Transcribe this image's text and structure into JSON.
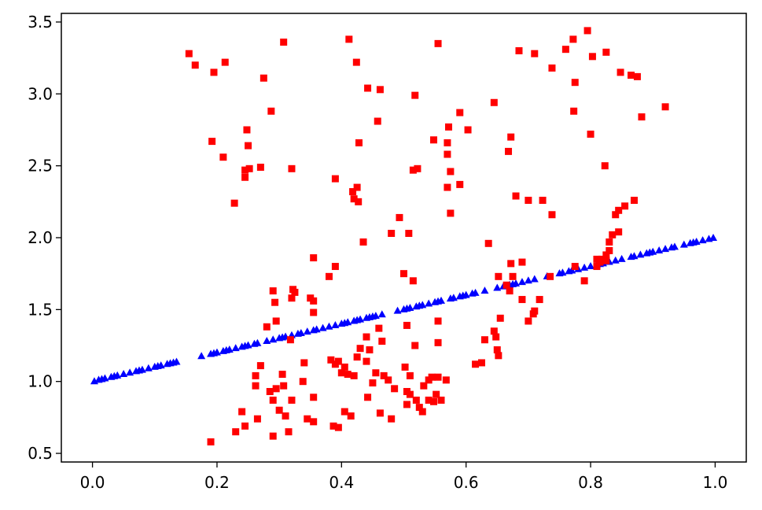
{
  "chart_data": {
    "type": "scatter",
    "title": "",
    "xlabel": "",
    "ylabel": "",
    "xlim": [
      -0.05,
      1.05
    ],
    "ylim": [
      0.44,
      3.56
    ],
    "grid": false,
    "x_ticks": [
      {
        "value": 0.0,
        "label": "0.0"
      },
      {
        "value": 0.2,
        "label": "0.2"
      },
      {
        "value": 0.4,
        "label": "0.4"
      },
      {
        "value": 0.6,
        "label": "0.6"
      },
      {
        "value": 0.8,
        "label": "0.8"
      },
      {
        "value": 1.0,
        "label": "1.0"
      }
    ],
    "y_ticks": [
      {
        "value": 0.5,
        "label": "0.5"
      },
      {
        "value": 1.0,
        "label": "1.0"
      },
      {
        "value": 1.5,
        "label": "1.5"
      },
      {
        "value": 2.0,
        "label": "2.0"
      },
      {
        "value": 2.5,
        "label": "2.5"
      },
      {
        "value": 3.0,
        "label": "3.0"
      },
      {
        "value": 3.5,
        "label": "3.5"
      }
    ],
    "series": [
      {
        "marker": "triangle",
        "color": "#0000ff",
        "points": [
          [
            0.003,
            1.0
          ],
          [
            0.01,
            1.01
          ],
          [
            0.015,
            1.015
          ],
          [
            0.02,
            1.02
          ],
          [
            0.03,
            1.03
          ],
          [
            0.035,
            1.035
          ],
          [
            0.04,
            1.04
          ],
          [
            0.05,
            1.05
          ],
          [
            0.06,
            1.06
          ],
          [
            0.07,
            1.07
          ],
          [
            0.075,
            1.075
          ],
          [
            0.08,
            1.08
          ],
          [
            0.09,
            1.09
          ],
          [
            0.1,
            1.1
          ],
          [
            0.105,
            1.105
          ],
          [
            0.11,
            1.11
          ],
          [
            0.12,
            1.12
          ],
          [
            0.125,
            1.125
          ],
          [
            0.13,
            1.13
          ],
          [
            0.135,
            1.135
          ],
          [
            0.175,
            1.175
          ],
          [
            0.19,
            1.19
          ],
          [
            0.195,
            1.195
          ],
          [
            0.2,
            1.2
          ],
          [
            0.21,
            1.21
          ],
          [
            0.215,
            1.215
          ],
          [
            0.22,
            1.22
          ],
          [
            0.23,
            1.23
          ],
          [
            0.24,
            1.24
          ],
          [
            0.245,
            1.245
          ],
          [
            0.25,
            1.25
          ],
          [
            0.26,
            1.26
          ],
          [
            0.265,
            1.265
          ],
          [
            0.28,
            1.28
          ],
          [
            0.29,
            1.29
          ],
          [
            0.3,
            1.3
          ],
          [
            0.305,
            1.305
          ],
          [
            0.31,
            1.31
          ],
          [
            0.32,
            1.32
          ],
          [
            0.33,
            1.33
          ],
          [
            0.335,
            1.335
          ],
          [
            0.345,
            1.345
          ],
          [
            0.355,
            1.355
          ],
          [
            0.36,
            1.36
          ],
          [
            0.37,
            1.37
          ],
          [
            0.38,
            1.38
          ],
          [
            0.39,
            1.39
          ],
          [
            0.4,
            1.4
          ],
          [
            0.405,
            1.405
          ],
          [
            0.41,
            1.41
          ],
          [
            0.42,
            1.42
          ],
          [
            0.425,
            1.425
          ],
          [
            0.43,
            1.43
          ],
          [
            0.44,
            1.44
          ],
          [
            0.445,
            1.445
          ],
          [
            0.45,
            1.45
          ],
          [
            0.455,
            1.455
          ],
          [
            0.465,
            1.465
          ],
          [
            0.49,
            1.49
          ],
          [
            0.5,
            1.5
          ],
          [
            0.505,
            1.505
          ],
          [
            0.51,
            1.51
          ],
          [
            0.52,
            1.52
          ],
          [
            0.525,
            1.525
          ],
          [
            0.53,
            1.53
          ],
          [
            0.54,
            1.54
          ],
          [
            0.55,
            1.55
          ],
          [
            0.555,
            1.555
          ],
          [
            0.56,
            1.56
          ],
          [
            0.575,
            1.575
          ],
          [
            0.58,
            1.58
          ],
          [
            0.59,
            1.59
          ],
          [
            0.595,
            1.595
          ],
          [
            0.6,
            1.6
          ],
          [
            0.61,
            1.61
          ],
          [
            0.615,
            1.615
          ],
          [
            0.63,
            1.63
          ],
          [
            0.65,
            1.65
          ],
          [
            0.66,
            1.66
          ],
          [
            0.67,
            1.67
          ],
          [
            0.675,
            1.675
          ],
          [
            0.68,
            1.68
          ],
          [
            0.69,
            1.69
          ],
          [
            0.7,
            1.7
          ],
          [
            0.71,
            1.71
          ],
          [
            0.73,
            1.73
          ],
          [
            0.75,
            1.75
          ],
          [
            0.755,
            1.755
          ],
          [
            0.765,
            1.765
          ],
          [
            0.77,
            1.77
          ],
          [
            0.78,
            1.78
          ],
          [
            0.79,
            1.79
          ],
          [
            0.8,
            1.8
          ],
          [
            0.81,
            1.81
          ],
          [
            0.815,
            1.815
          ],
          [
            0.82,
            1.82
          ],
          [
            0.83,
            1.83
          ],
          [
            0.84,
            1.84
          ],
          [
            0.85,
            1.85
          ],
          [
            0.865,
            1.865
          ],
          [
            0.87,
            1.87
          ],
          [
            0.88,
            1.88
          ],
          [
            0.89,
            1.89
          ],
          [
            0.895,
            1.895
          ],
          [
            0.9,
            1.9
          ],
          [
            0.91,
            1.91
          ],
          [
            0.92,
            1.92
          ],
          [
            0.93,
            1.93
          ],
          [
            0.935,
            1.935
          ],
          [
            0.95,
            1.95
          ],
          [
            0.96,
            1.96
          ],
          [
            0.965,
            1.965
          ],
          [
            0.97,
            1.97
          ],
          [
            0.98,
            1.98
          ],
          [
            0.99,
            1.99
          ],
          [
            0.997,
            1.997
          ]
        ]
      },
      {
        "marker": "square",
        "color": "#ff0000",
        "points": [
          [
            0.155,
            3.28
          ],
          [
            0.165,
            3.2
          ],
          [
            0.195,
            3.15
          ],
          [
            0.213,
            3.22
          ],
          [
            0.192,
            2.67
          ],
          [
            0.21,
            2.56
          ],
          [
            0.228,
            2.24
          ],
          [
            0.245,
            2.47
          ],
          [
            0.245,
            2.42
          ],
          [
            0.248,
            2.75
          ],
          [
            0.25,
            2.64
          ],
          [
            0.252,
            2.48
          ],
          [
            0.27,
            2.49
          ],
          [
            0.275,
            3.11
          ],
          [
            0.287,
            2.88
          ],
          [
            0.307,
            3.36
          ],
          [
            0.32,
            2.48
          ],
          [
            0.39,
            2.41
          ],
          [
            0.412,
            3.38
          ],
          [
            0.418,
            2.32
          ],
          [
            0.42,
            2.27
          ],
          [
            0.424,
            3.22
          ],
          [
            0.425,
            2.35
          ],
          [
            0.427,
            2.25
          ],
          [
            0.428,
            2.66
          ],
          [
            0.435,
            1.97
          ],
          [
            0.442,
            3.04
          ],
          [
            0.458,
            2.81
          ],
          [
            0.462,
            3.03
          ],
          [
            0.48,
            2.03
          ],
          [
            0.493,
            2.14
          ],
          [
            0.508,
            2.03
          ],
          [
            0.515,
            2.47
          ],
          [
            0.518,
            2.99
          ],
          [
            0.522,
            2.48
          ],
          [
            0.548,
            2.68
          ],
          [
            0.555,
            3.35
          ],
          [
            0.57,
            2.66
          ],
          [
            0.57,
            2.58
          ],
          [
            0.572,
            2.77
          ],
          [
            0.575,
            2.46
          ],
          [
            0.57,
            2.35
          ],
          [
            0.575,
            2.17
          ],
          [
            0.59,
            2.87
          ],
          [
            0.59,
            2.37
          ],
          [
            0.603,
            2.75
          ],
          [
            0.645,
            2.94
          ],
          [
            0.636,
            1.96
          ],
          [
            0.668,
            2.6
          ],
          [
            0.672,
            2.7
          ],
          [
            0.68,
            2.29
          ],
          [
            0.685,
            3.3
          ],
          [
            0.71,
            3.28
          ],
          [
            0.7,
            2.26
          ],
          [
            0.723,
            2.26
          ],
          [
            0.738,
            3.18
          ],
          [
            0.738,
            2.16
          ],
          [
            0.76,
            3.31
          ],
          [
            0.772,
            3.38
          ],
          [
            0.775,
            3.08
          ],
          [
            0.773,
            2.88
          ],
          [
            0.795,
            3.44
          ],
          [
            0.8,
            2.72
          ],
          [
            0.803,
            3.26
          ],
          [
            0.825,
            3.29
          ],
          [
            0.823,
            2.5
          ],
          [
            0.84,
            2.16
          ],
          [
            0.845,
            2.19
          ],
          [
            0.848,
            3.15
          ],
          [
            0.855,
            2.22
          ],
          [
            0.865,
            3.13
          ],
          [
            0.87,
            2.26
          ],
          [
            0.875,
            3.12
          ],
          [
            0.882,
            2.84
          ],
          [
            0.92,
            2.91
          ],
          [
            0.19,
            0.58
          ],
          [
            0.23,
            0.65
          ],
          [
            0.24,
            0.79
          ],
          [
            0.245,
            0.69
          ],
          [
            0.262,
            1.04
          ],
          [
            0.262,
            0.97
          ],
          [
            0.265,
            0.74
          ],
          [
            0.27,
            1.11
          ],
          [
            0.28,
            1.38
          ],
          [
            0.285,
            0.93
          ],
          [
            0.29,
            0.62
          ],
          [
            0.29,
            0.87
          ],
          [
            0.29,
            1.63
          ],
          [
            0.293,
            1.55
          ],
          [
            0.295,
            1.42
          ],
          [
            0.295,
            0.95
          ],
          [
            0.3,
            0.8
          ],
          [
            0.305,
            1.05
          ],
          [
            0.307,
            0.97
          ],
          [
            0.31,
            0.76
          ],
          [
            0.315,
            0.65
          ],
          [
            0.318,
            1.29
          ],
          [
            0.32,
            1.58
          ],
          [
            0.322,
            1.64
          ],
          [
            0.325,
            1.62
          ],
          [
            0.32,
            0.87
          ],
          [
            0.338,
            1.0
          ],
          [
            0.34,
            1.13
          ],
          [
            0.345,
            0.74
          ],
          [
            0.35,
            1.58
          ],
          [
            0.355,
            1.56
          ],
          [
            0.355,
            1.86
          ],
          [
            0.355,
            1.48
          ],
          [
            0.355,
            0.72
          ],
          [
            0.355,
            0.89
          ],
          [
            0.38,
            1.73
          ],
          [
            0.383,
            1.15
          ],
          [
            0.387,
            0.69
          ],
          [
            0.39,
            1.8
          ],
          [
            0.39,
            1.12
          ],
          [
            0.395,
            1.14
          ],
          [
            0.395,
            0.68
          ],
          [
            0.4,
            1.06
          ],
          [
            0.405,
            1.1
          ],
          [
            0.405,
            0.79
          ],
          [
            0.41,
            1.05
          ],
          [
            0.415,
            0.76
          ],
          [
            0.42,
            1.04
          ],
          [
            0.425,
            1.17
          ],
          [
            0.43,
            1.23
          ],
          [
            0.44,
            1.31
          ],
          [
            0.44,
            1.14
          ],
          [
            0.442,
            0.89
          ],
          [
            0.445,
            1.22
          ],
          [
            0.45,
            0.99
          ],
          [
            0.455,
            1.06
          ],
          [
            0.46,
            1.37
          ],
          [
            0.462,
            0.78
          ],
          [
            0.465,
            1.28
          ],
          [
            0.468,
            1.04
          ],
          [
            0.475,
            1.01
          ],
          [
            0.48,
            0.74
          ],
          [
            0.485,
            0.95
          ],
          [
            0.5,
            1.75
          ],
          [
            0.505,
            1.39
          ],
          [
            0.502,
            1.1
          ],
          [
            0.505,
            0.84
          ],
          [
            0.505,
            0.93
          ],
          [
            0.51,
            1.04
          ],
          [
            0.515,
            1.7
          ],
          [
            0.51,
            0.91
          ],
          [
            0.518,
            1.25
          ],
          [
            0.52,
            0.87
          ],
          [
            0.525,
            0.82
          ],
          [
            0.53,
            0.79
          ],
          [
            0.532,
            0.97
          ],
          [
            0.54,
            1.01
          ],
          [
            0.54,
            0.87
          ],
          [
            0.545,
            1.03
          ],
          [
            0.548,
            0.86
          ],
          [
            0.552,
            0.91
          ],
          [
            0.555,
            1.27
          ],
          [
            0.555,
            1.42
          ],
          [
            0.555,
            1.03
          ],
          [
            0.56,
            0.87
          ],
          [
            0.568,
            1.01
          ],
          [
            0.615,
            1.12
          ],
          [
            0.625,
            1.13
          ],
          [
            0.63,
            1.29
          ],
          [
            0.645,
            1.35
          ],
          [
            0.648,
            1.31
          ],
          [
            0.65,
            1.22
          ],
          [
            0.652,
            1.18
          ],
          [
            0.652,
            1.73
          ],
          [
            0.655,
            1.44
          ],
          [
            0.665,
            1.67
          ],
          [
            0.67,
            1.63
          ],
          [
            0.672,
            1.82
          ],
          [
            0.675,
            1.73
          ],
          [
            0.69,
            1.57
          ],
          [
            0.69,
            1.83
          ],
          [
            0.7,
            1.42
          ],
          [
            0.708,
            1.47
          ],
          [
            0.71,
            1.49
          ],
          [
            0.718,
            1.57
          ],
          [
            0.735,
            1.73
          ],
          [
            0.775,
            1.8
          ],
          [
            0.79,
            1.7
          ],
          [
            0.81,
            1.8
          ],
          [
            0.81,
            1.85
          ],
          [
            0.815,
            1.83
          ],
          [
            0.818,
            1.85
          ],
          [
            0.825,
            1.88
          ],
          [
            0.83,
            1.91
          ],
          [
            0.825,
            1.84
          ],
          [
            0.83,
            1.97
          ],
          [
            0.835,
            2.02
          ],
          [
            0.845,
            2.04
          ]
        ]
      }
    ]
  }
}
